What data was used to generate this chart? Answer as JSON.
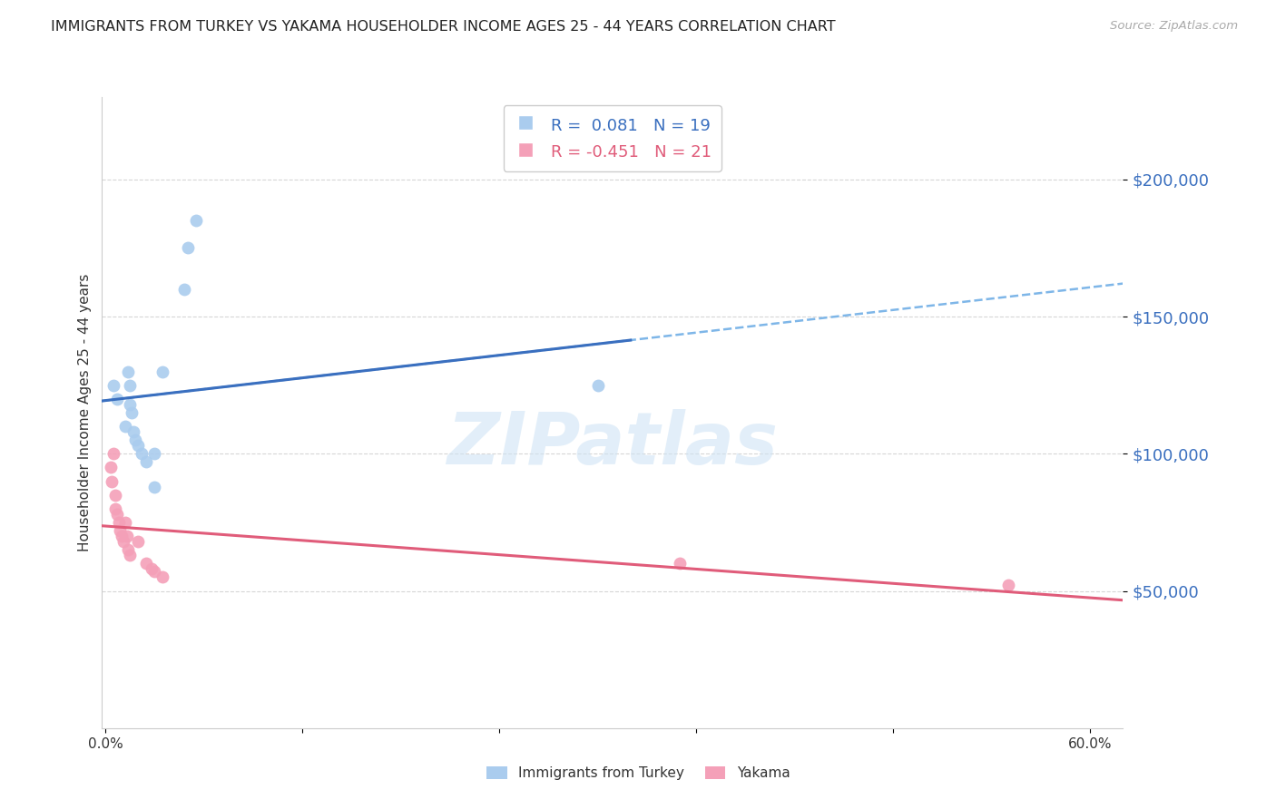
{
  "title": "IMMIGRANTS FROM TURKEY VS YAKAMA HOUSEHOLDER INCOME AGES 25 - 44 YEARS CORRELATION CHART",
  "source": "Source: ZipAtlas.com",
  "ylabel": "Householder Income Ages 25 - 44 years",
  "ytick_values": [
    50000,
    100000,
    150000,
    200000
  ],
  "ymin": 0,
  "ymax": 230000,
  "xmin": -0.002,
  "xmax": 0.62,
  "legend1_label": "Immigrants from Turkey",
  "legend2_label": "Yakama",
  "legend1_R": "0.081",
  "legend1_N": "19",
  "legend2_R": "-0.451",
  "legend2_N": "21",
  "blue_color": "#aaccee",
  "pink_color": "#f4a0b8",
  "blue_line_solid_color": "#3a6fbf",
  "blue_line_dashed_color": "#7eb6e8",
  "pink_line_color": "#e05c7a",
  "ytick_color": "#3a6fbf",
  "watermark_color": "#d0e4f5",
  "turkey_x": [
    0.005,
    0.007,
    0.012,
    0.014,
    0.015,
    0.015,
    0.016,
    0.017,
    0.018,
    0.02,
    0.022,
    0.025,
    0.03,
    0.03,
    0.035,
    0.048,
    0.05,
    0.055,
    0.3
  ],
  "turkey_y": [
    125000,
    120000,
    110000,
    130000,
    125000,
    118000,
    115000,
    108000,
    105000,
    103000,
    100000,
    97000,
    88000,
    100000,
    130000,
    160000,
    175000,
    185000,
    125000
  ],
  "yakama_x": [
    0.003,
    0.004,
    0.005,
    0.006,
    0.006,
    0.007,
    0.008,
    0.009,
    0.01,
    0.011,
    0.012,
    0.013,
    0.014,
    0.015,
    0.02,
    0.025,
    0.028,
    0.03,
    0.035,
    0.35,
    0.55
  ],
  "yakama_y": [
    95000,
    90000,
    100000,
    85000,
    80000,
    78000,
    75000,
    72000,
    70000,
    68000,
    75000,
    70000,
    65000,
    63000,
    68000,
    60000,
    58000,
    57000,
    55000,
    60000,
    52000
  ]
}
